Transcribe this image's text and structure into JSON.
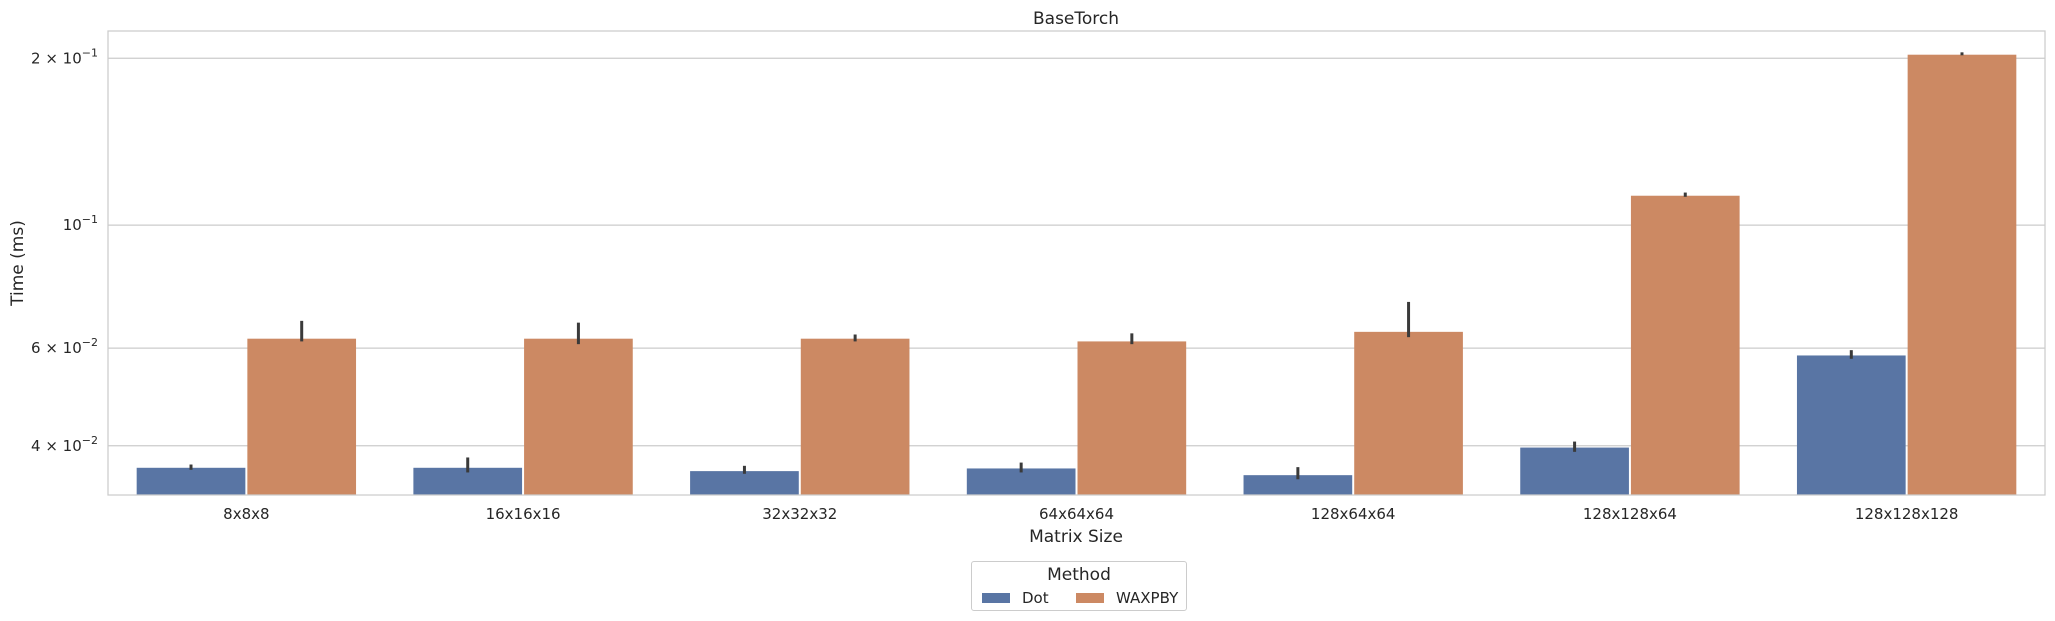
{
  "chart_data": {
    "type": "bar",
    "title": "BaseTorch",
    "xlabel": "Matrix Size",
    "ylabel": "Time (ms)",
    "yscale": "log",
    "ylim": [
      0.0326,
      0.224
    ],
    "yticks": [
      {
        "value": 0.04,
        "base": "4 × 10",
        "exp": "−2"
      },
      {
        "value": 0.06,
        "base": "6 × 10",
        "exp": "−2"
      },
      {
        "value": 0.1,
        "base": "10",
        "exp": "−1"
      },
      {
        "value": 0.2,
        "base": "2 × 10",
        "exp": "−1"
      }
    ],
    "grid": "horizontal",
    "legend_position": "bottom-center",
    "legend_title": "Method",
    "categories": [
      "8x8x8",
      "16x16x16",
      "32x32x32",
      "64x64x64",
      "128x64x64",
      "128x128x64",
      "128x128x128"
    ],
    "series": [
      {
        "name": "Dot",
        "color": "#5975a4",
        "values": [
          0.0365,
          0.0365,
          0.036,
          0.0364,
          0.0354,
          0.0397,
          0.0582
        ],
        "err_low": [
          0.0362,
          0.0358,
          0.0356,
          0.0358,
          0.0348,
          0.039,
          0.0574
        ],
        "err_high": [
          0.037,
          0.0381,
          0.0368,
          0.0373,
          0.0366,
          0.0407,
          0.0595
        ]
      },
      {
        "name": "WAXPBY",
        "color": "#cc8963",
        "values": [
          0.0624,
          0.0624,
          0.0624,
          0.0617,
          0.0642,
          0.113,
          0.203
        ],
        "err_low": [
          0.0617,
          0.061,
          0.0617,
          0.061,
          0.0628,
          0.1125,
          0.2025
        ],
        "err_high": [
          0.0672,
          0.0667,
          0.0635,
          0.0638,
          0.0727,
          0.1145,
          0.205
        ]
      }
    ]
  }
}
